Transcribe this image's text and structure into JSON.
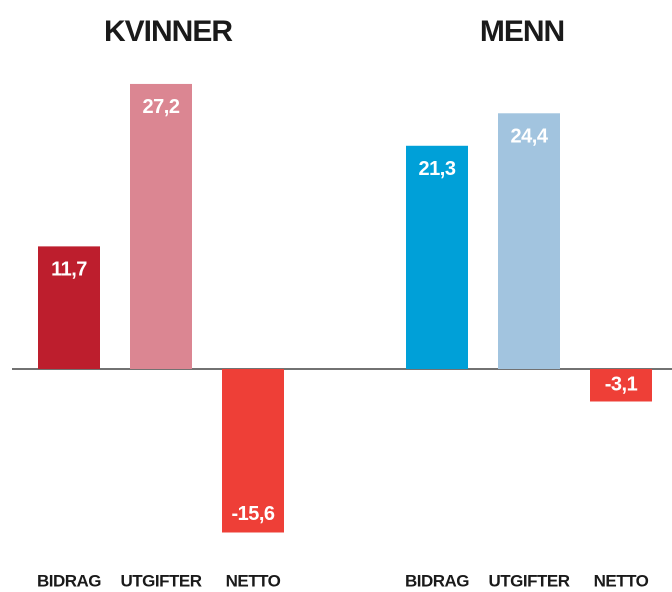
{
  "chart_data": [
    {
      "type": "bar",
      "title": "KVINNER",
      "categories": [
        "BIDRAG",
        "UTGIFTER",
        "NETTO"
      ],
      "values": [
        11.7,
        27.2,
        -15.6
      ],
      "value_labels": [
        "11,7",
        "27,2",
        "-15,6"
      ],
      "colors": [
        "#bd1e2d",
        "#db8692",
        "#ee3f37"
      ]
    },
    {
      "type": "bar",
      "title": "MENN",
      "categories": [
        "BIDRAG",
        "UTGIFTER",
        "NETTO"
      ],
      "values": [
        21.3,
        24.4,
        -3.1
      ],
      "value_labels": [
        "21,3",
        "24,4",
        "-3,1"
      ],
      "colors": [
        "#00a0d8",
        "#a2c4df",
        "#ee3f37"
      ]
    }
  ]
}
